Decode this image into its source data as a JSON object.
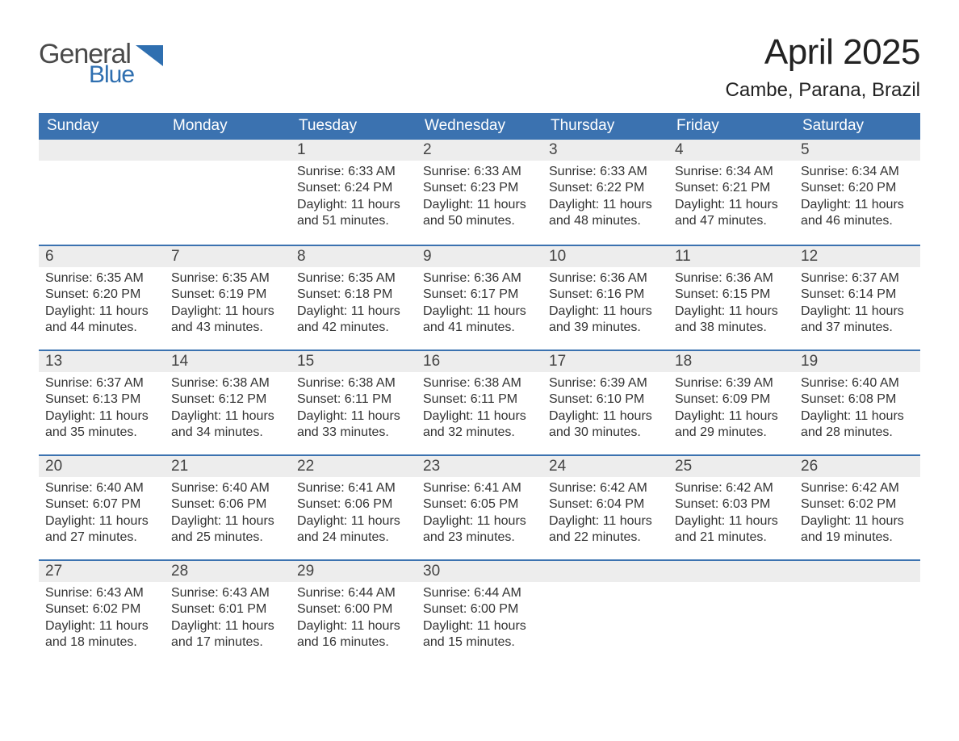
{
  "logo": {
    "text1": "General",
    "text2": "Blue",
    "accent_color": "#2f6fb0"
  },
  "title": "April 2025",
  "location": "Cambe, Parana, Brazil",
  "header_bg": "#3b72b0",
  "daynum_bg": "#ededed",
  "border_color": "#3b72b0",
  "text_color": "#333333",
  "background_color": "#ffffff",
  "days_of_week": [
    "Sunday",
    "Monday",
    "Tuesday",
    "Wednesday",
    "Thursday",
    "Friday",
    "Saturday"
  ],
  "weeks": [
    [
      null,
      null,
      {
        "n": "1",
        "sunrise": "6:33 AM",
        "sunset": "6:24 PM",
        "daylight": "11 hours and 51 minutes."
      },
      {
        "n": "2",
        "sunrise": "6:33 AM",
        "sunset": "6:23 PM",
        "daylight": "11 hours and 50 minutes."
      },
      {
        "n": "3",
        "sunrise": "6:33 AM",
        "sunset": "6:22 PM",
        "daylight": "11 hours and 48 minutes."
      },
      {
        "n": "4",
        "sunrise": "6:34 AM",
        "sunset": "6:21 PM",
        "daylight": "11 hours and 47 minutes."
      },
      {
        "n": "5",
        "sunrise": "6:34 AM",
        "sunset": "6:20 PM",
        "daylight": "11 hours and 46 minutes."
      }
    ],
    [
      {
        "n": "6",
        "sunrise": "6:35 AM",
        "sunset": "6:20 PM",
        "daylight": "11 hours and 44 minutes."
      },
      {
        "n": "7",
        "sunrise": "6:35 AM",
        "sunset": "6:19 PM",
        "daylight": "11 hours and 43 minutes."
      },
      {
        "n": "8",
        "sunrise": "6:35 AM",
        "sunset": "6:18 PM",
        "daylight": "11 hours and 42 minutes."
      },
      {
        "n": "9",
        "sunrise": "6:36 AM",
        "sunset": "6:17 PM",
        "daylight": "11 hours and 41 minutes."
      },
      {
        "n": "10",
        "sunrise": "6:36 AM",
        "sunset": "6:16 PM",
        "daylight": "11 hours and 39 minutes."
      },
      {
        "n": "11",
        "sunrise": "6:36 AM",
        "sunset": "6:15 PM",
        "daylight": "11 hours and 38 minutes."
      },
      {
        "n": "12",
        "sunrise": "6:37 AM",
        "sunset": "6:14 PM",
        "daylight": "11 hours and 37 minutes."
      }
    ],
    [
      {
        "n": "13",
        "sunrise": "6:37 AM",
        "sunset": "6:13 PM",
        "daylight": "11 hours and 35 minutes."
      },
      {
        "n": "14",
        "sunrise": "6:38 AM",
        "sunset": "6:12 PM",
        "daylight": "11 hours and 34 minutes."
      },
      {
        "n": "15",
        "sunrise": "6:38 AM",
        "sunset": "6:11 PM",
        "daylight": "11 hours and 33 minutes."
      },
      {
        "n": "16",
        "sunrise": "6:38 AM",
        "sunset": "6:11 PM",
        "daylight": "11 hours and 32 minutes."
      },
      {
        "n": "17",
        "sunrise": "6:39 AM",
        "sunset": "6:10 PM",
        "daylight": "11 hours and 30 minutes."
      },
      {
        "n": "18",
        "sunrise": "6:39 AM",
        "sunset": "6:09 PM",
        "daylight": "11 hours and 29 minutes."
      },
      {
        "n": "19",
        "sunrise": "6:40 AM",
        "sunset": "6:08 PM",
        "daylight": "11 hours and 28 minutes."
      }
    ],
    [
      {
        "n": "20",
        "sunrise": "6:40 AM",
        "sunset": "6:07 PM",
        "daylight": "11 hours and 27 minutes."
      },
      {
        "n": "21",
        "sunrise": "6:40 AM",
        "sunset": "6:06 PM",
        "daylight": "11 hours and 25 minutes."
      },
      {
        "n": "22",
        "sunrise": "6:41 AM",
        "sunset": "6:06 PM",
        "daylight": "11 hours and 24 minutes."
      },
      {
        "n": "23",
        "sunrise": "6:41 AM",
        "sunset": "6:05 PM",
        "daylight": "11 hours and 23 minutes."
      },
      {
        "n": "24",
        "sunrise": "6:42 AM",
        "sunset": "6:04 PM",
        "daylight": "11 hours and 22 minutes."
      },
      {
        "n": "25",
        "sunrise": "6:42 AM",
        "sunset": "6:03 PM",
        "daylight": "11 hours and 21 minutes."
      },
      {
        "n": "26",
        "sunrise": "6:42 AM",
        "sunset": "6:02 PM",
        "daylight": "11 hours and 19 minutes."
      }
    ],
    [
      {
        "n": "27",
        "sunrise": "6:43 AM",
        "sunset": "6:02 PM",
        "daylight": "11 hours and 18 minutes."
      },
      {
        "n": "28",
        "sunrise": "6:43 AM",
        "sunset": "6:01 PM",
        "daylight": "11 hours and 17 minutes."
      },
      {
        "n": "29",
        "sunrise": "6:44 AM",
        "sunset": "6:00 PM",
        "daylight": "11 hours and 16 minutes."
      },
      {
        "n": "30",
        "sunrise": "6:44 AM",
        "sunset": "6:00 PM",
        "daylight": "11 hours and 15 minutes."
      },
      null,
      null,
      null
    ]
  ],
  "labels": {
    "sunrise": "Sunrise:",
    "sunset": "Sunset:",
    "daylight": "Daylight:"
  }
}
